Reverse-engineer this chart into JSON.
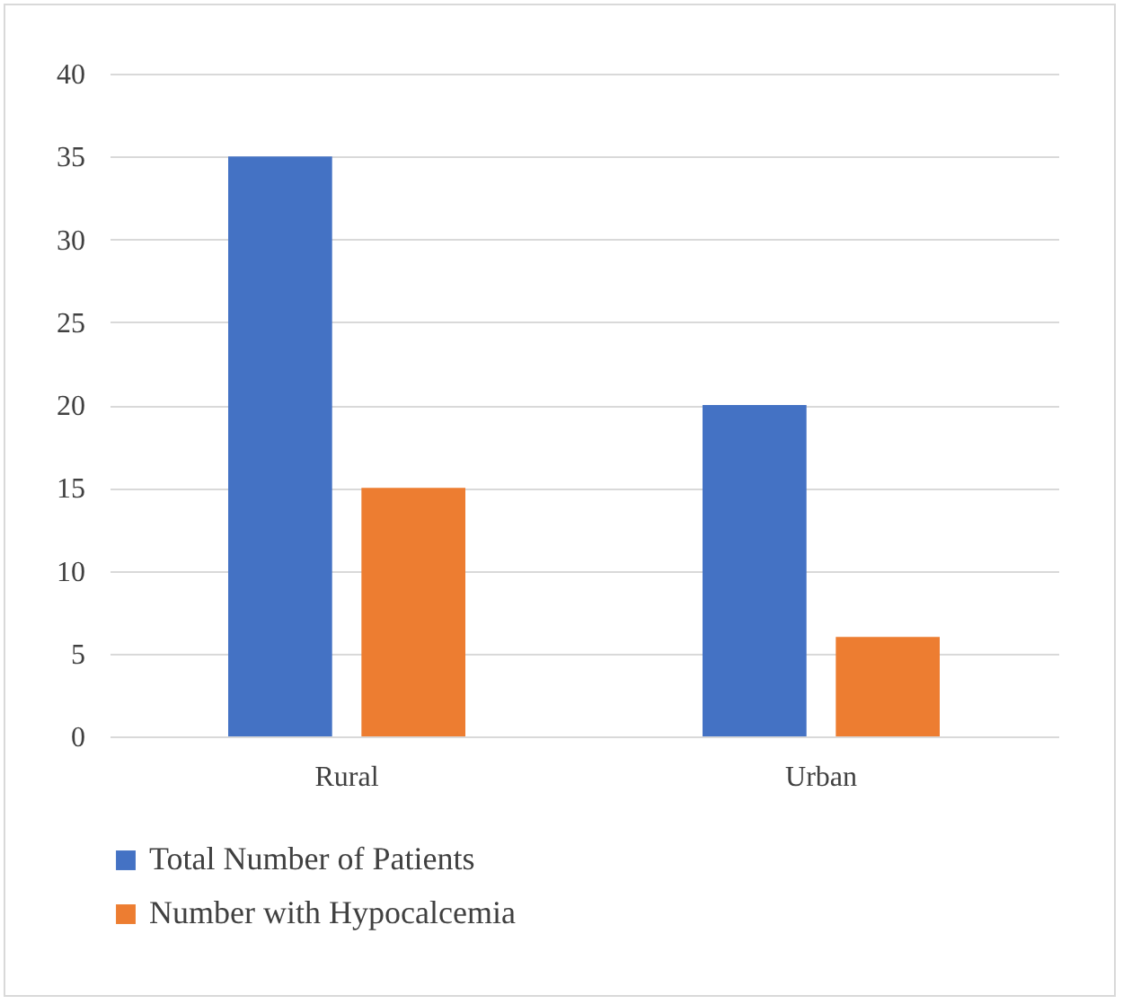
{
  "chart_data": {
    "type": "bar",
    "categories": [
      "Rural",
      "Urban"
    ],
    "series": [
      {
        "name": "Total Number of Patients",
        "color": "#4472c4",
        "values": [
          35,
          20
        ]
      },
      {
        "name": "Number with Hypocalcemia",
        "color": "#ed7d31",
        "values": [
          15,
          6
        ]
      }
    ],
    "ylim": [
      0,
      40
    ],
    "yticks": [
      0,
      5,
      10,
      15,
      20,
      25,
      30,
      35,
      40
    ],
    "grid": "y",
    "legend": "bottom"
  }
}
